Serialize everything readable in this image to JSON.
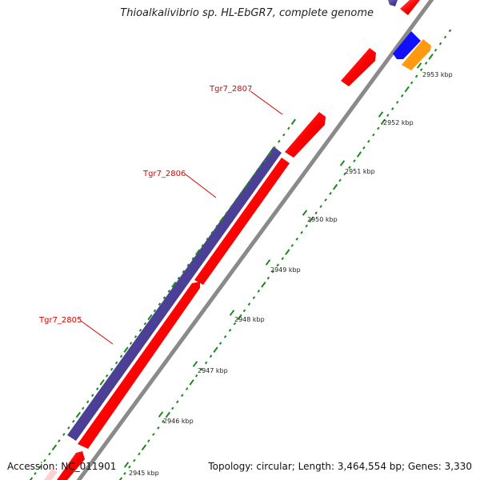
{
  "title": "Thioalkalivibrio sp. HL-EbGR7, complete genome",
  "accession": "Accession: NC_011901",
  "topology": "Topology: circular; Length: 3,464,554 bp; Genes: 3,330",
  "genes": [
    {
      "name": "Tgr7_2805"
    },
    {
      "name": "Tgr7_2806"
    },
    {
      "name": "Tgr7_2807"
    }
  ],
  "kbp_ticks": [
    "2945 kbp",
    "2946 kbp",
    "2947 kbp",
    "2948 kbp",
    "2949 kbp",
    "2950 kbp",
    "2951 kbp",
    "2952 kbp",
    "2953 kbp"
  ],
  "colors": {
    "forward_gene": "#ff0000",
    "reverse_gene": "#4b3f96",
    "backbone": "#8a8a8a",
    "tick": "#1a8a1a",
    "label": "#e00000",
    "blue_feature": "#1010ff",
    "orange_feature": "#ff9a10"
  }
}
